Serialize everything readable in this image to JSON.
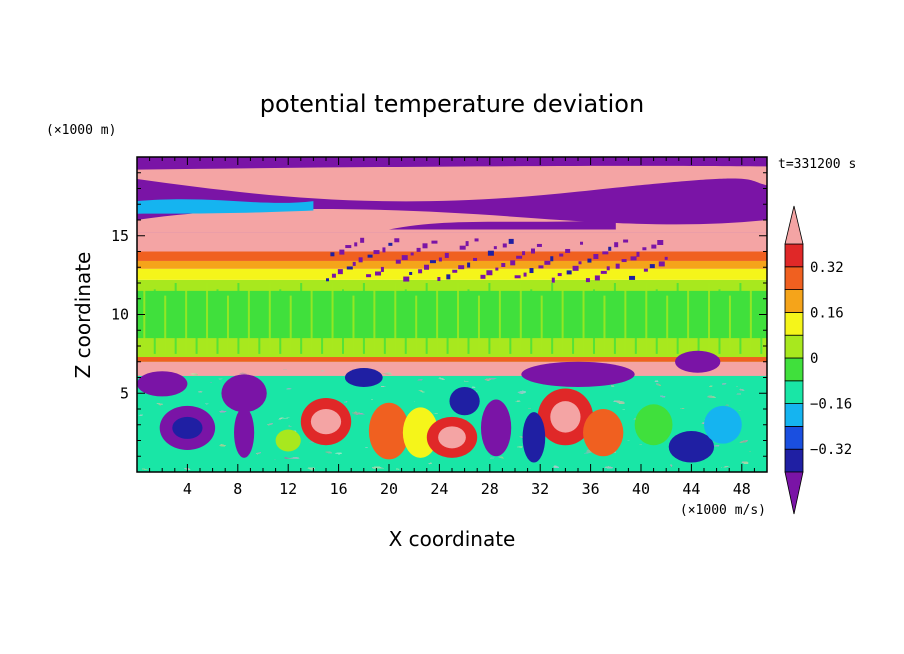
{
  "chart_data": {
    "type": "heatmap",
    "title": "potential temperature deviation",
    "xlabel": "X coordinate",
    "ylabel": "Z coordinate",
    "x_unit": "(×1000 m/s)",
    "y_unit": "(×1000 m)",
    "time_label": "t=331200 s",
    "xlim": [
      0,
      50
    ],
    "ylim": [
      0,
      20
    ],
    "x_ticks": [
      4,
      8,
      12,
      16,
      20,
      24,
      28,
      32,
      36,
      40,
      44,
      48
    ],
    "y_ticks": [
      5,
      10,
      15
    ],
    "colorbar": {
      "levels": [
        -0.4,
        -0.32,
        -0.24,
        -0.16,
        -0.08,
        0,
        0.08,
        0.16,
        0.24,
        0.32,
        0.4
      ],
      "tick_labels": [
        {
          "value": 0.32,
          "label": "0.32"
        },
        {
          "value": 0.16,
          "label": "0.16"
        },
        {
          "value": 0,
          "label": "0"
        },
        {
          "value": -0.16,
          "label": "−0.16"
        },
        {
          "value": -0.32,
          "label": "−0.32"
        }
      ],
      "colors": [
        "#7a14a6",
        "#1f1fa3",
        "#1a4fe0",
        "#15b4f0",
        "#19e6a6",
        "#40e03c",
        "#a8e81e",
        "#f5f51a",
        "#f5a41a",
        "#f06020",
        "#e02828",
        "#f4a4a4"
      ],
      "extend": "both"
    }
  }
}
